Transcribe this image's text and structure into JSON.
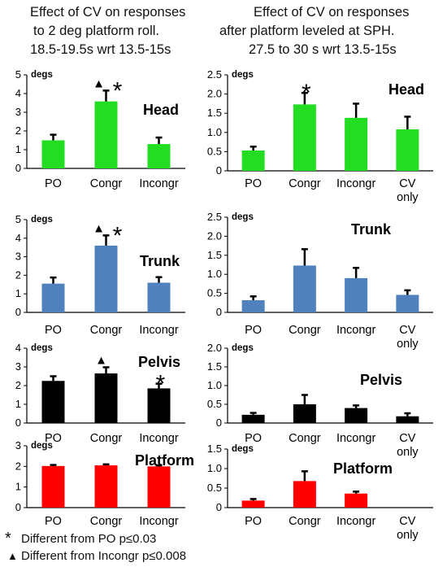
{
  "titles": {
    "left": [
      "Effect of CV on responses",
      "to  2 deg platform roll.",
      "18.5-19.5s wrt 13.5-15s"
    ],
    "right": [
      "Effect of CV on responses",
      "after platform leveled at  SPH.",
      "27.5 to 30 s wrt 13.5-15s"
    ]
  },
  "legend": {
    "star_symbol": "*",
    "star_text": "Different  from PO p≤0.03",
    "triangle_symbol": "▲",
    "triangle_text": "Different  from Incongr p≤0.008"
  },
  "chart_data": [
    {
      "id": "head-left",
      "type": "bar",
      "title": "Head",
      "ylabel": "degs",
      "ylim": [
        0,
        5
      ],
      "ticks": [
        "0",
        "1",
        "2",
        "3",
        "4",
        "5"
      ],
      "color": "#22dd22",
      "categories": [
        "PO",
        "Congr",
        "Incongr"
      ],
      "values": [
        1.5,
        3.58,
        1.3
      ],
      "errors": [
        0.3,
        0.58,
        0.35
      ],
      "markers": [
        {
          "category": 1,
          "symbols": [
            "▲",
            "*"
          ]
        }
      ]
    },
    {
      "id": "head-right",
      "type": "bar",
      "title": "Head",
      "ylabel": "degs",
      "ylim": [
        0,
        2.5
      ],
      "ticks": [
        "0",
        "0.5",
        "1.0",
        "1.5",
        "2.0",
        "2.5"
      ],
      "color": "#22dd22",
      "categories": [
        "PO",
        "Congr",
        "Incongr",
        "CV\nonly"
      ],
      "values": [
        0.53,
        1.73,
        1.38,
        1.08
      ],
      "errors": [
        0.1,
        0.3,
        0.37,
        0.33
      ],
      "markers": [
        {
          "category": 1,
          "symbols": [
            "*"
          ]
        }
      ]
    },
    {
      "id": "trunk-left",
      "type": "bar",
      "title": "Trunk",
      "ylabel": "degs",
      "ylim": [
        0,
        5
      ],
      "ticks": [
        "0",
        "1",
        "2",
        "3",
        "4",
        "5"
      ],
      "color": "#4f81bd",
      "categories": [
        "PO",
        "Congr",
        "Incongr"
      ],
      "values": [
        1.55,
        3.6,
        1.6
      ],
      "errors": [
        0.33,
        0.55,
        0.3
      ],
      "markers": [
        {
          "category": 1,
          "symbols": [
            "▲",
            "*"
          ]
        }
      ]
    },
    {
      "id": "trunk-right",
      "type": "bar",
      "title": "Trunk",
      "ylabel": "degs",
      "ylim": [
        0,
        2.5
      ],
      "ticks": [
        "0",
        "0.5",
        "1.0",
        "1.5",
        "2.0",
        "2.5"
      ],
      "color": "#4f81bd",
      "categories": [
        "PO",
        "Congr",
        "Incongr",
        "CV\nonly"
      ],
      "values": [
        0.32,
        1.23,
        0.9,
        0.46
      ],
      "errors": [
        0.1,
        0.43,
        0.27,
        0.12
      ],
      "markers": []
    },
    {
      "id": "pelvis-left",
      "type": "bar",
      "title": "Pelvis",
      "ylabel": "degs",
      "ylim": [
        0,
        4
      ],
      "ticks": [
        "0",
        "1",
        "2",
        "3",
        "4"
      ],
      "color": "#000000",
      "categories": [
        "PO",
        "Congr",
        "Incongr"
      ],
      "values": [
        2.25,
        2.65,
        1.85
      ],
      "errors": [
        0.25,
        0.33,
        0.25
      ],
      "markers": [
        {
          "category": 1,
          "symbols": [
            "▲"
          ]
        },
        {
          "category": 2,
          "symbols": [
            "*"
          ]
        }
      ]
    },
    {
      "id": "pelvis-right",
      "type": "bar",
      "title": "Pelvis",
      "ylabel": "degs",
      "ylim": [
        0,
        2.0
      ],
      "ticks": [
        "0",
        "0.5",
        "1.0",
        "1.5",
        "2.0"
      ],
      "color": "#000000",
      "categories": [
        "PO",
        "Congr",
        "Incongr",
        "CV\nonly"
      ],
      "values": [
        0.22,
        0.5,
        0.4,
        0.18
      ],
      "errors": [
        0.05,
        0.25,
        0.07,
        0.08
      ],
      "markers": []
    },
    {
      "id": "platform-left",
      "type": "bar",
      "title": "Platform",
      "ylabel": "degs",
      "ylim": [
        0,
        3
      ],
      "ticks": [
        "0",
        "1",
        "2",
        "3"
      ],
      "color": "#ff0000",
      "categories": [
        "PO",
        "Congr",
        "Incongr"
      ],
      "values": [
        2.02,
        2.05,
        2.0
      ],
      "errors": [
        0.05,
        0.05,
        0.05
      ],
      "markers": []
    },
    {
      "id": "platform-right",
      "type": "bar",
      "title": "Platform",
      "ylabel": "degs",
      "ylim": [
        0,
        1.5
      ],
      "ticks": [
        "0",
        "0.5",
        "1.0",
        "1.5"
      ],
      "color": "#ff0000",
      "categories": [
        "PO",
        "Congr",
        "Incongr",
        "CV\nonly"
      ],
      "values": [
        0.18,
        0.68,
        0.36,
        0.0
      ],
      "errors": [
        0.04,
        0.25,
        0.05,
        0
      ],
      "markers": []
    }
  ]
}
